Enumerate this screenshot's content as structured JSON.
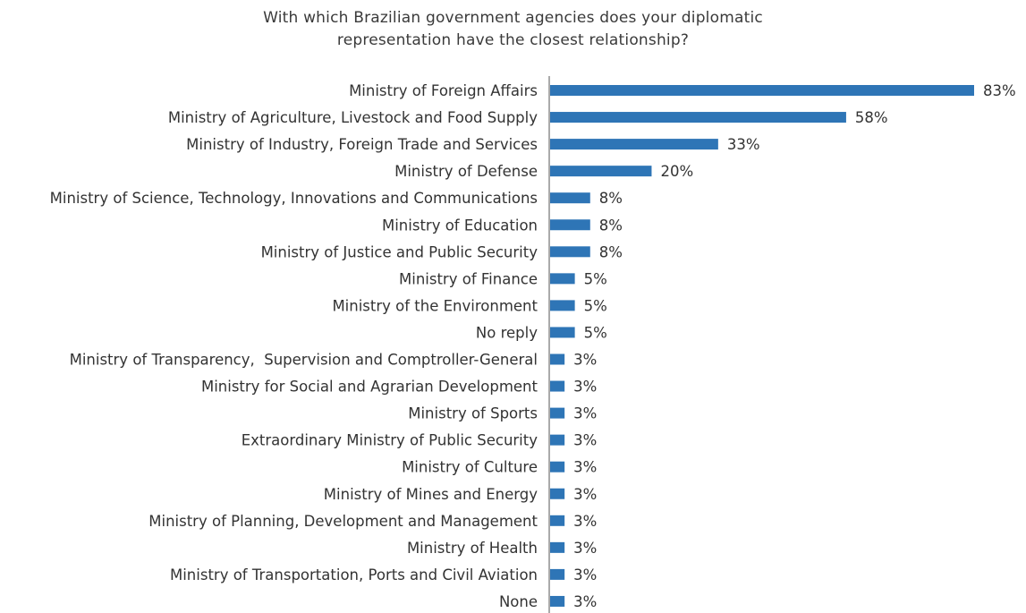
{
  "chart_data": {
    "type": "bar",
    "orientation": "horizontal",
    "title": "With which Brazilian government agencies does your diplomatic representation have the closest relationship?",
    "title_lines": [
      "With which Brazilian government agencies does your diplomatic",
      "representation have the closest relationship?"
    ],
    "xlabel": "",
    "ylabel": "",
    "value_suffix": "%",
    "xlim": [
      0,
      83
    ],
    "grid": false,
    "legend": "none",
    "bar_color": "#2e75b6",
    "categories": [
      "Ministry of Foreign Affairs",
      "Ministry of Agriculture, Livestock and Food Supply",
      "Ministry of Industry, Foreign Trade and Services",
      "Ministry of Defense",
      "Ministry of Science, Technology, Innovations and Communications",
      "Ministry of Education",
      "Ministry of Justice and Public Security",
      "Ministry of Finance",
      "Ministry of the Environment",
      "No reply",
      "Ministry of Transparency,  Supervision and Comptroller-General",
      "Ministry for Social and Agrarian Development",
      "Ministry of Sports",
      "Extraordinary Ministry of Public Security",
      "Ministry of Culture",
      "Ministry of Mines and Energy",
      "Ministry of Planning, Development and Management",
      "Ministry of Health",
      "Ministry of Transportation, Ports and Civil Aviation",
      "None"
    ],
    "values": [
      83,
      58,
      33,
      20,
      8,
      8,
      8,
      5,
      5,
      5,
      3,
      3,
      3,
      3,
      3,
      3,
      3,
      3,
      3,
      3
    ]
  }
}
